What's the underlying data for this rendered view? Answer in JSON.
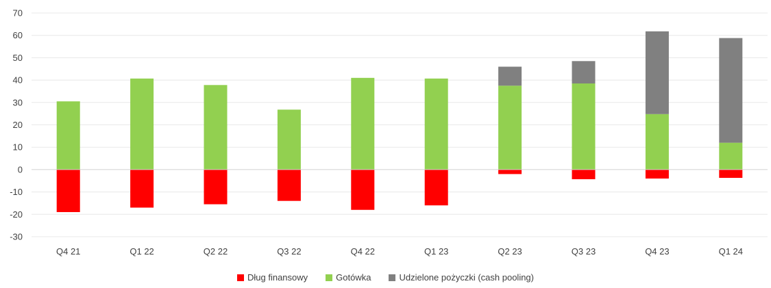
{
  "chart_data": {
    "type": "bar",
    "stacked": true,
    "categories": [
      "Q4 21",
      "Q1 22",
      "Q2 22",
      "Q3 22",
      "Q4 22",
      "Q1 23",
      "Q2 23",
      "Q3 23",
      "Q4 23",
      "Q1 24"
    ],
    "series": [
      {
        "name": "Dług finansowy",
        "color": "#ff0000",
        "values": [
          -19,
          -17,
          -15.5,
          -14,
          -18,
          -16,
          -2,
          -4.3,
          -4,
          -3.7
        ]
      },
      {
        "name": "Gotówka",
        "color": "#92d050",
        "values": [
          30.5,
          40.7,
          37.8,
          26.8,
          41,
          40.7,
          37.5,
          38.5,
          24.8,
          12
        ]
      },
      {
        "name": "Udzielone pożyczki (cash pooling)",
        "color": "#808080",
        "values": [
          0,
          0,
          0,
          0,
          0,
          0,
          8.5,
          10,
          37,
          46.8
        ]
      }
    ],
    "ylim": [
      -30,
      70
    ],
    "yticks": [
      70,
      60,
      50,
      40,
      30,
      20,
      10,
      0,
      -10,
      -20,
      -30
    ],
    "grid": true,
    "legend_position": "bottom"
  }
}
